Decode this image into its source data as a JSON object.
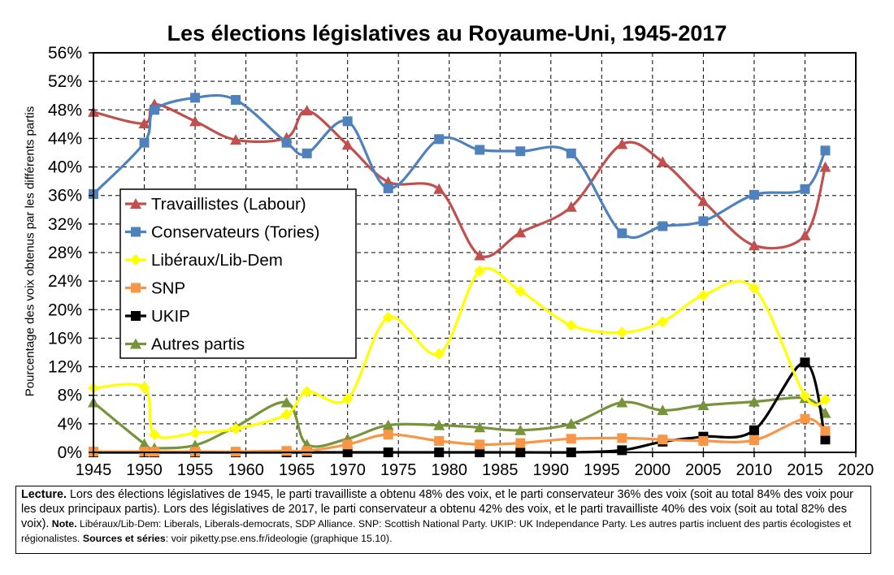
{
  "chart_data": {
    "type": "line",
    "title": "Les élections législatives au Royaume-Uni, 1945-2017",
    "ylabel": "Pourcentage des voix obtenus par les différents partis",
    "xlabel": "",
    "xlim": [
      1945,
      2020
    ],
    "ylim": [
      0,
      56
    ],
    "x_ticks": [
      "1945",
      "1950",
      "1955",
      "1960",
      "1965",
      "1970",
      "1975",
      "1980",
      "1985",
      "1990",
      "1995",
      "2000",
      "2005",
      "2010",
      "2015",
      "2020"
    ],
    "y_ticks": [
      "0%",
      "4%",
      "8%",
      "12%",
      "16%",
      "20%",
      "24%",
      "28%",
      "32%",
      "36%",
      "40%",
      "44%",
      "48%",
      "52%",
      "56%"
    ],
    "grid": true,
    "legend_position": "middle-left",
    "x": [
      1945,
      1950,
      1951,
      1955,
      1959,
      1964,
      1966,
      1970,
      1974,
      1979,
      1983,
      1987,
      1992,
      1997,
      2001,
      2005,
      2010,
      2015,
      2017
    ],
    "series": [
      {
        "name": "Travaillistes (Labour)",
        "color": "#c0504d",
        "marker": "triangle",
        "values": [
          47.7,
          46.1,
          48.8,
          46.4,
          43.8,
          44.1,
          47.9,
          43.1,
          37.9,
          36.9,
          27.6,
          30.8,
          34.4,
          43.2,
          40.7,
          35.2,
          29.0,
          30.4,
          40.0
        ]
      },
      {
        "name": "Conservateurs (Tories)",
        "color": "#4f81bd",
        "marker": "square",
        "values": [
          36.2,
          43.4,
          48.0,
          49.7,
          49.4,
          43.4,
          41.9,
          46.4,
          37.0,
          43.9,
          42.4,
          42.2,
          41.9,
          30.7,
          31.7,
          32.4,
          36.1,
          36.9,
          42.3
        ]
      },
      {
        "name": "Libéraux/Lib-Dem",
        "color": "#ffff00",
        "marker": "diamond",
        "values": [
          9.0,
          9.1,
          2.5,
          2.7,
          3.3,
          5.3,
          8.5,
          7.5,
          18.9,
          13.8,
          25.4,
          22.6,
          17.8,
          16.8,
          18.3,
          22.0,
          23.0,
          7.9,
          7.4
        ]
      },
      {
        "name": "SNP",
        "color": "#f79646",
        "marker": "square",
        "values": [
          0.1,
          0.1,
          0.1,
          0.1,
          0.1,
          0.2,
          0.2,
          1.1,
          2.5,
          1.6,
          1.1,
          1.3,
          1.9,
          2.0,
          1.8,
          1.6,
          1.7,
          4.7,
          3.0
        ]
      },
      {
        "name": "UKIP",
        "color": "#000000",
        "marker": "square",
        "values": [
          0.0,
          0.0,
          0.0,
          0.0,
          0.0,
          0.0,
          0.0,
          0.0,
          0.0,
          0.0,
          0.0,
          0.0,
          0.0,
          0.3,
          1.5,
          2.2,
          3.1,
          12.6,
          1.8
        ]
      },
      {
        "name": "Autres partis",
        "color": "#77933c",
        "marker": "triangle",
        "values": [
          7.0,
          1.2,
          0.6,
          1.0,
          3.6,
          7.0,
          1.1,
          1.9,
          3.8,
          3.8,
          3.5,
          3.1,
          4.0,
          7.0,
          5.9,
          6.6,
          7.1,
          7.6,
          5.5
        ]
      }
    ]
  },
  "note": {
    "lecture_label": "Lecture.",
    "lecture_text": " Lors des élections législatives de 1945, le parti travailliste a obtenu 48% des voix, et le parti conservateur 36% des voix (soit au total 84% des voix pour les deux principaux partis). Lors des législatives de 2017, le parti conservateur a obtenu 42% des voix, et le parti travailliste 40% des voix (soit au total 82% des voix).",
    "note_label": " Note.",
    "note_text": " Libéraux/Lib-Dem: Liberals, Liberals-democrats, SDP Alliance. SNP: Scottish National Party. UKIP: UK Independance Party. Les autres partis incluent des partis écologistes et régionalistes.",
    "sources_label": " Sources et séries",
    "sources_text": ": voir piketty.pse.ens.fr/ideologie (graphique 15.10)."
  }
}
